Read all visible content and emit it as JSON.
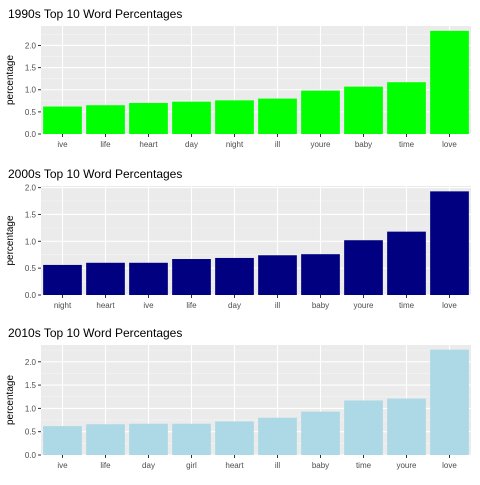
{
  "chart_data": [
    {
      "type": "bar",
      "title": "1990s Top 10 Word Percentages",
      "xlabel": "",
      "ylabel": "percentage",
      "categories": [
        "ive",
        "life",
        "heart",
        "day",
        "night",
        "ill",
        "youre",
        "baby",
        "time",
        "love"
      ],
      "values": [
        0.62,
        0.65,
        0.7,
        0.73,
        0.76,
        0.8,
        0.98,
        1.07,
        1.17,
        2.33
      ],
      "ylim": [
        0,
        2.44
      ],
      "yticks": [
        "0.0",
        "0.5",
        "1.0",
        "1.5",
        "2.0"
      ],
      "color": "#00ff00",
      "grid": true,
      "legend": "none"
    },
    {
      "type": "bar",
      "title": "2000s Top 10 Word Percentages",
      "xlabel": "",
      "ylabel": "percentage",
      "categories": [
        "night",
        "heart",
        "ive",
        "life",
        "day",
        "ill",
        "baby",
        "youre",
        "time",
        "love"
      ],
      "values": [
        0.56,
        0.6,
        0.6,
        0.67,
        0.69,
        0.74,
        0.76,
        1.02,
        1.18,
        1.93
      ],
      "ylim": [
        0,
        2.03
      ],
      "yticks": [
        "0.0",
        "0.5",
        "1.0",
        "1.5",
        "2.0"
      ],
      "color": "#000080",
      "grid": true,
      "legend": "none"
    },
    {
      "type": "bar",
      "title": "2010s Top 10 Word Percentages",
      "xlabel": "",
      "ylabel": "percentage",
      "categories": [
        "ive",
        "life",
        "day",
        "girl",
        "heart",
        "ill",
        "baby",
        "time",
        "youre",
        "love"
      ],
      "values": [
        0.62,
        0.66,
        0.67,
        0.67,
        0.72,
        0.8,
        0.93,
        1.17,
        1.21,
        2.26
      ],
      "ylim": [
        0,
        2.36
      ],
      "yticks": [
        "0.0",
        "0.5",
        "1.0",
        "1.5",
        "2.0"
      ],
      "color": "#add8e6",
      "grid": true,
      "legend": "none"
    }
  ]
}
